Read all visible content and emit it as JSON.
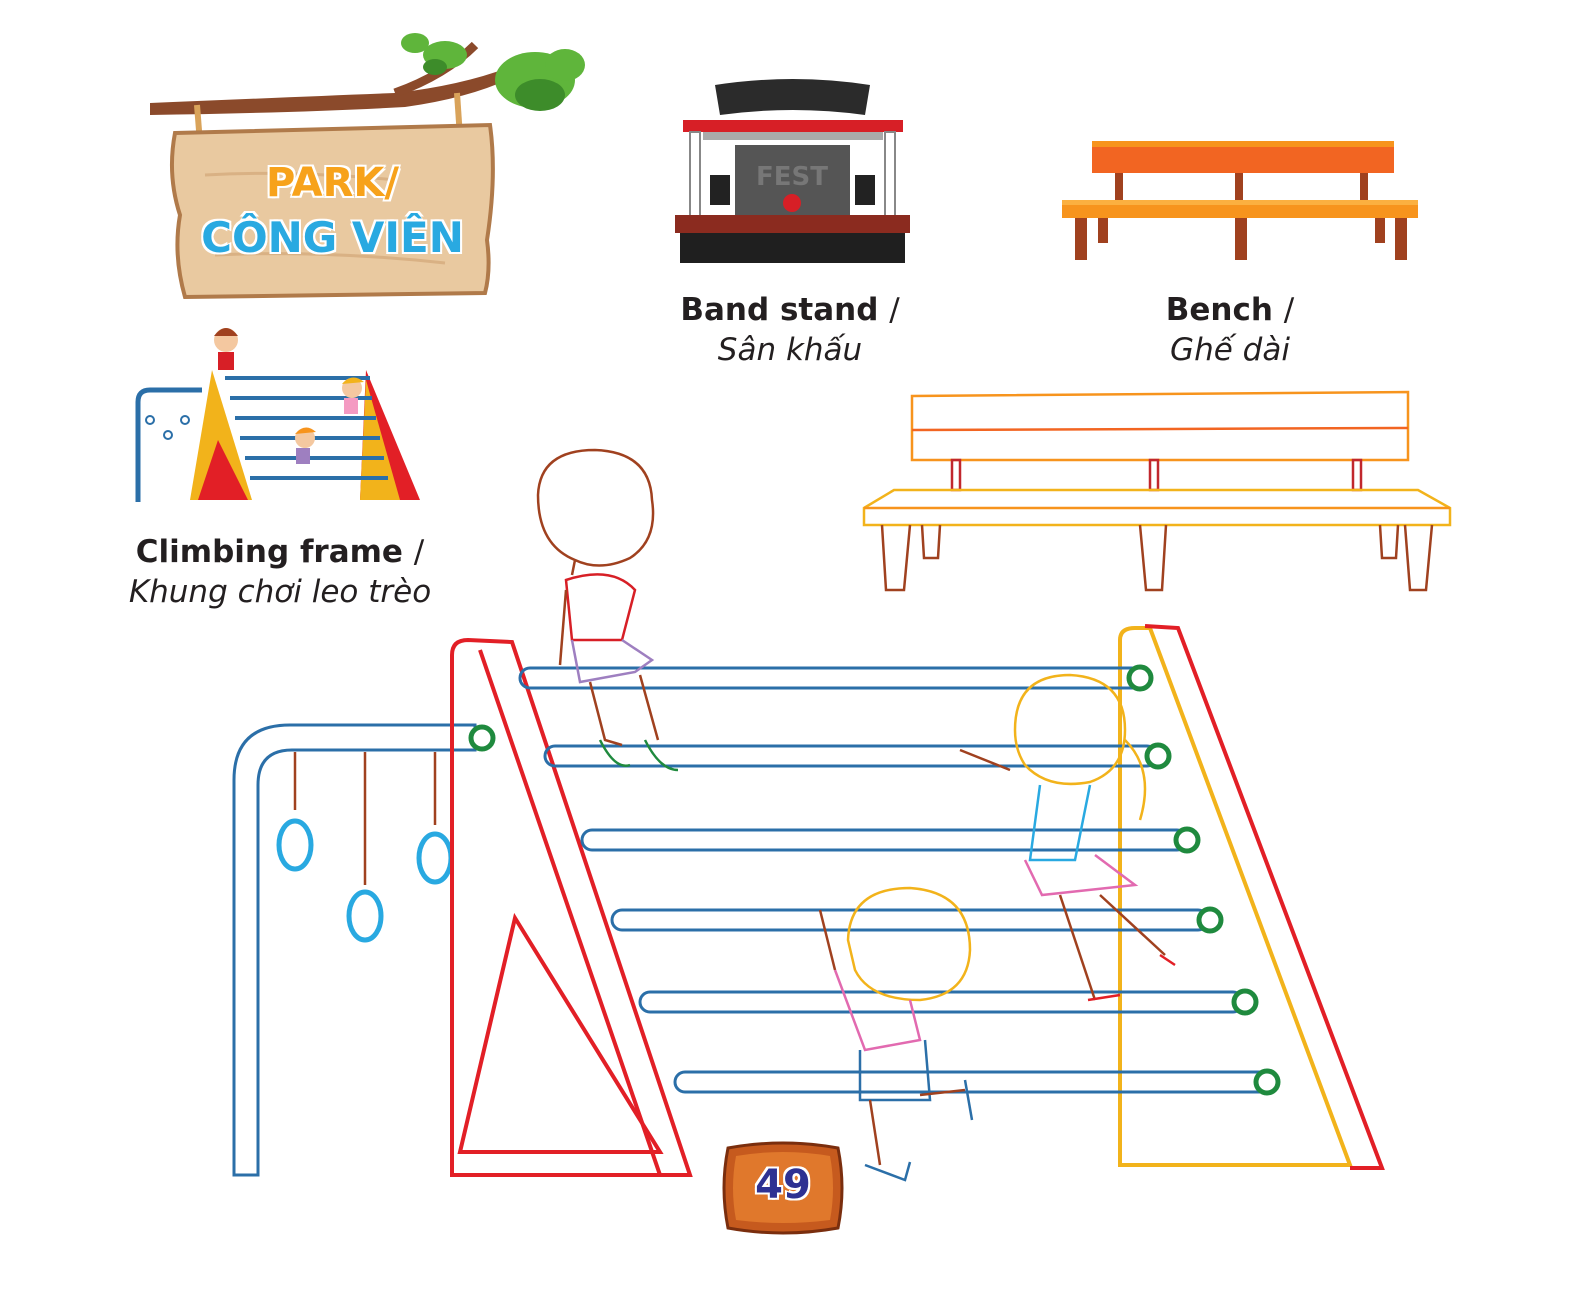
{
  "sign": {
    "title": "PARK/",
    "subtitle": "CÔNG VIÊN"
  },
  "items": [
    {
      "en": "Band stand",
      "vi": "Sân khấu"
    },
    {
      "en": "Bench",
      "vi": "Ghế dài"
    },
    {
      "en": "Climbing frame",
      "vi": "Khung chơi leo trèo"
    }
  ],
  "separator": "/",
  "page_number": "49",
  "colors": {
    "sign_title": "#f7a21b",
    "sign_subtitle": "#29a9e1",
    "wood": "#e9c9a0",
    "frame_red": "#e21f26",
    "frame_yellow": "#f2b31b",
    "bar_blue": "#2b6fa8",
    "bench_orange": "#f26522"
  }
}
